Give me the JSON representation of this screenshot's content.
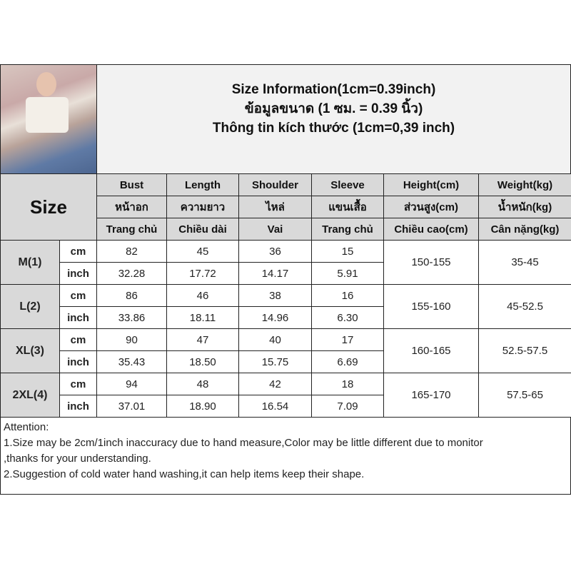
{
  "title": {
    "line1": "Size Information(1cm=0.39inch)",
    "line2": "ข้อมูลขนาด (1 ซม. = 0.39 นิ้ว)",
    "line3": "Thông tin kích thước (1cm=0,39 inch)"
  },
  "size_label": "Size",
  "headers": [
    [
      "Bust",
      "Length",
      "Shoulder",
      "Sleeve",
      "Height(cm)",
      "Weight(kg)"
    ],
    [
      "หน้าอก",
      "ความยาว",
      "ไหล่",
      "แขนเสื้อ",
      "ส่วนสูง(cm)",
      "น้ำหนัก(kg)"
    ],
    [
      "Trang chủ",
      "Chiều dài",
      "Vai",
      "Trang chủ",
      "Chiều cao(cm)",
      "Cân nặng(kg)"
    ]
  ],
  "units": [
    "cm",
    "inch"
  ],
  "rows": [
    {
      "size": "M(1)",
      "cm": [
        "82",
        "45",
        "36",
        "15"
      ],
      "inch": [
        "32.28",
        "17.72",
        "14.17",
        "5.91"
      ],
      "height": "150-155",
      "weight": "35-45"
    },
    {
      "size": "L(2)",
      "cm": [
        "86",
        "46",
        "38",
        "16"
      ],
      "inch": [
        "33.86",
        "18.11",
        "14.96",
        "6.30"
      ],
      "height": "155-160",
      "weight": "45-52.5"
    },
    {
      "size": "XL(3)",
      "cm": [
        "90",
        "47",
        "40",
        "17"
      ],
      "inch": [
        "35.43",
        "18.50",
        "15.75",
        "6.69"
      ],
      "height": "160-165",
      "weight": "52.5-57.5"
    },
    {
      "size": "2XL(4)",
      "cm": [
        "94",
        "48",
        "42",
        "18"
      ],
      "inch": [
        "37.01",
        "18.90",
        "16.54",
        "7.09"
      ],
      "height": "165-170",
      "weight": "57.5-65"
    }
  ],
  "attention": [
    "Attention:",
    "1.Size may be 2cm/1inch inaccuracy due to hand measure,Color may be little different due to monitor",
    ",thanks for your understanding.",
    "2.Suggestion of cold water hand washing,it can help items keep their shape."
  ]
}
